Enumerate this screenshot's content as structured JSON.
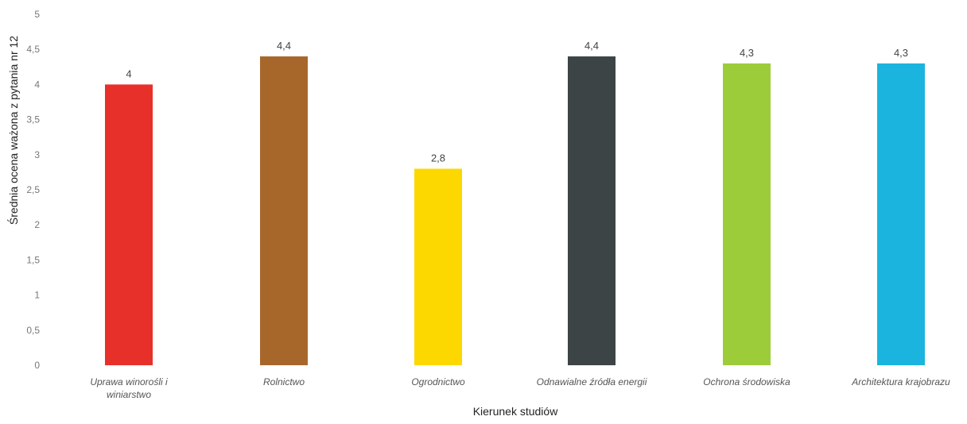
{
  "chart_data": {
    "type": "bar",
    "categories": [
      [
        "Uprawa winorośli i",
        "winiarstwo"
      ],
      [
        "Rolnictwo"
      ],
      [
        "Ogrodnictwo"
      ],
      [
        "Odnawialne źródła energii"
      ],
      [
        "Ochrona środowiska"
      ],
      [
        "Architektura krajobrazu"
      ]
    ],
    "values": [
      4,
      4.4,
      2.8,
      4.4,
      4.3,
      4.3
    ],
    "data_labels": [
      "4",
      "4,4",
      "2,8",
      "4,4",
      "4,3",
      "4,3"
    ],
    "colors": [
      "#e8302a",
      "#a8672a",
      "#fdd800",
      "#3c4446",
      "#9ccc3a",
      "#1bb4de"
    ],
    "title": "",
    "xlabel": "Kierunek studiów",
    "ylabel": "Średnia ocena ważona z pytania nr 12",
    "ylim": [
      0,
      5
    ],
    "yticks": [
      0,
      0.5,
      1,
      1.5,
      2,
      2.5,
      3,
      3.5,
      4,
      4.5,
      5
    ],
    "ytick_labels": [
      "0",
      "0,5",
      "1",
      "1,5",
      "2",
      "2,5",
      "3",
      "3,5",
      "4",
      "4,5",
      "5"
    ],
    "grid": false,
    "legend": "none"
  }
}
